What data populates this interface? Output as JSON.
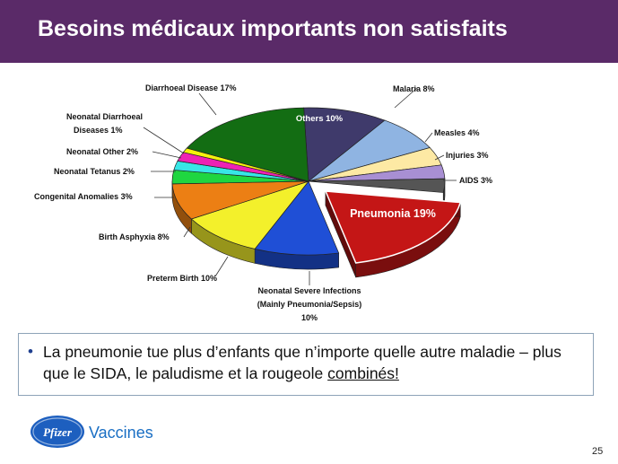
{
  "slide": {
    "title": "Besoins médicaux importants non satisfaits",
    "page_number": "25",
    "brand_label": "Vaccines",
    "logo_text": "Pfizer"
  },
  "callout": {
    "text_before": "La pneumonie tue plus d’enfants que n’importe quelle autre maladie – plus que le SIDA, le paludisme et la rougeole ",
    "text_underlined": "combinés!"
  },
  "chart_data": {
    "type": "pie",
    "style": "3d-exploded",
    "unit": "%",
    "slices": [
      {
        "label": "Others 10%",
        "value": 10,
        "color": "#3f3a6b"
      },
      {
        "label": "Malaria 8%",
        "value": 8,
        "color": "#8fb4e2"
      },
      {
        "label": "Measles 4%",
        "value": 4,
        "color": "#fde9a4"
      },
      {
        "label": "Injuries 3%",
        "value": 3,
        "color": "#a88fd3"
      },
      {
        "label": "AIDS 3%",
        "value": 3,
        "color": "#555555"
      },
      {
        "label": "Pneumonia 19%",
        "value": 19,
        "color": "#c41616",
        "exploded": true
      },
      {
        "label": "Neonatal Severe Infections (Mainly Pneumonia/Sepsis) 10%",
        "value": 10,
        "color": "#1f4fd6"
      },
      {
        "label": "Preterm Birth 10%",
        "value": 10,
        "color": "#f3f02b"
      },
      {
        "label": "Birth Asphyxia 8%",
        "value": 8,
        "color": "#ec7f14"
      },
      {
        "label": "Congenital Anomalies 3%",
        "value": 3,
        "color": "#1fd640"
      },
      {
        "label": "Neonatal Tetanus 2%",
        "value": 2,
        "color": "#37e6e6"
      },
      {
        "label": "Neonatal Other 2%",
        "value": 2,
        "color": "#ee22b4"
      },
      {
        "label": "Neonatal Diarrhoeal Diseases 1%",
        "value": 1,
        "color": "#f4f20c"
      },
      {
        "label": "Diarrhoeal Disease 17%",
        "value": 17,
        "color": "#136d13"
      }
    ],
    "labels": {
      "others": "Others 10%",
      "malaria": "Malaria 8%",
      "measles": "Measles 4%",
      "injuries": "Injuries 3%",
      "aids": "AIDS 3%",
      "pneumonia": "Pneumonia 19%",
      "neonatal_severe_1": "Neonatal Severe Infections",
      "neonatal_severe_2": "(Mainly Pneumonia/Sepsis)",
      "neonatal_severe_3": "10%",
      "preterm": "Preterm Birth 10%",
      "asphyxia": "Birth Asphyxia 8%",
      "congenital": "Congenital Anomalies 3%",
      "tetanus": "Neonatal Tetanus 2%",
      "neonatal_other": "Neonatal Other 2%",
      "neonatal_diarrhoeal_1": "Neonatal Diarrhoeal",
      "neonatal_diarrhoeal_2": "Diseases 1%",
      "diarrhoeal": "Diarrhoeal Disease 17%"
    }
  }
}
